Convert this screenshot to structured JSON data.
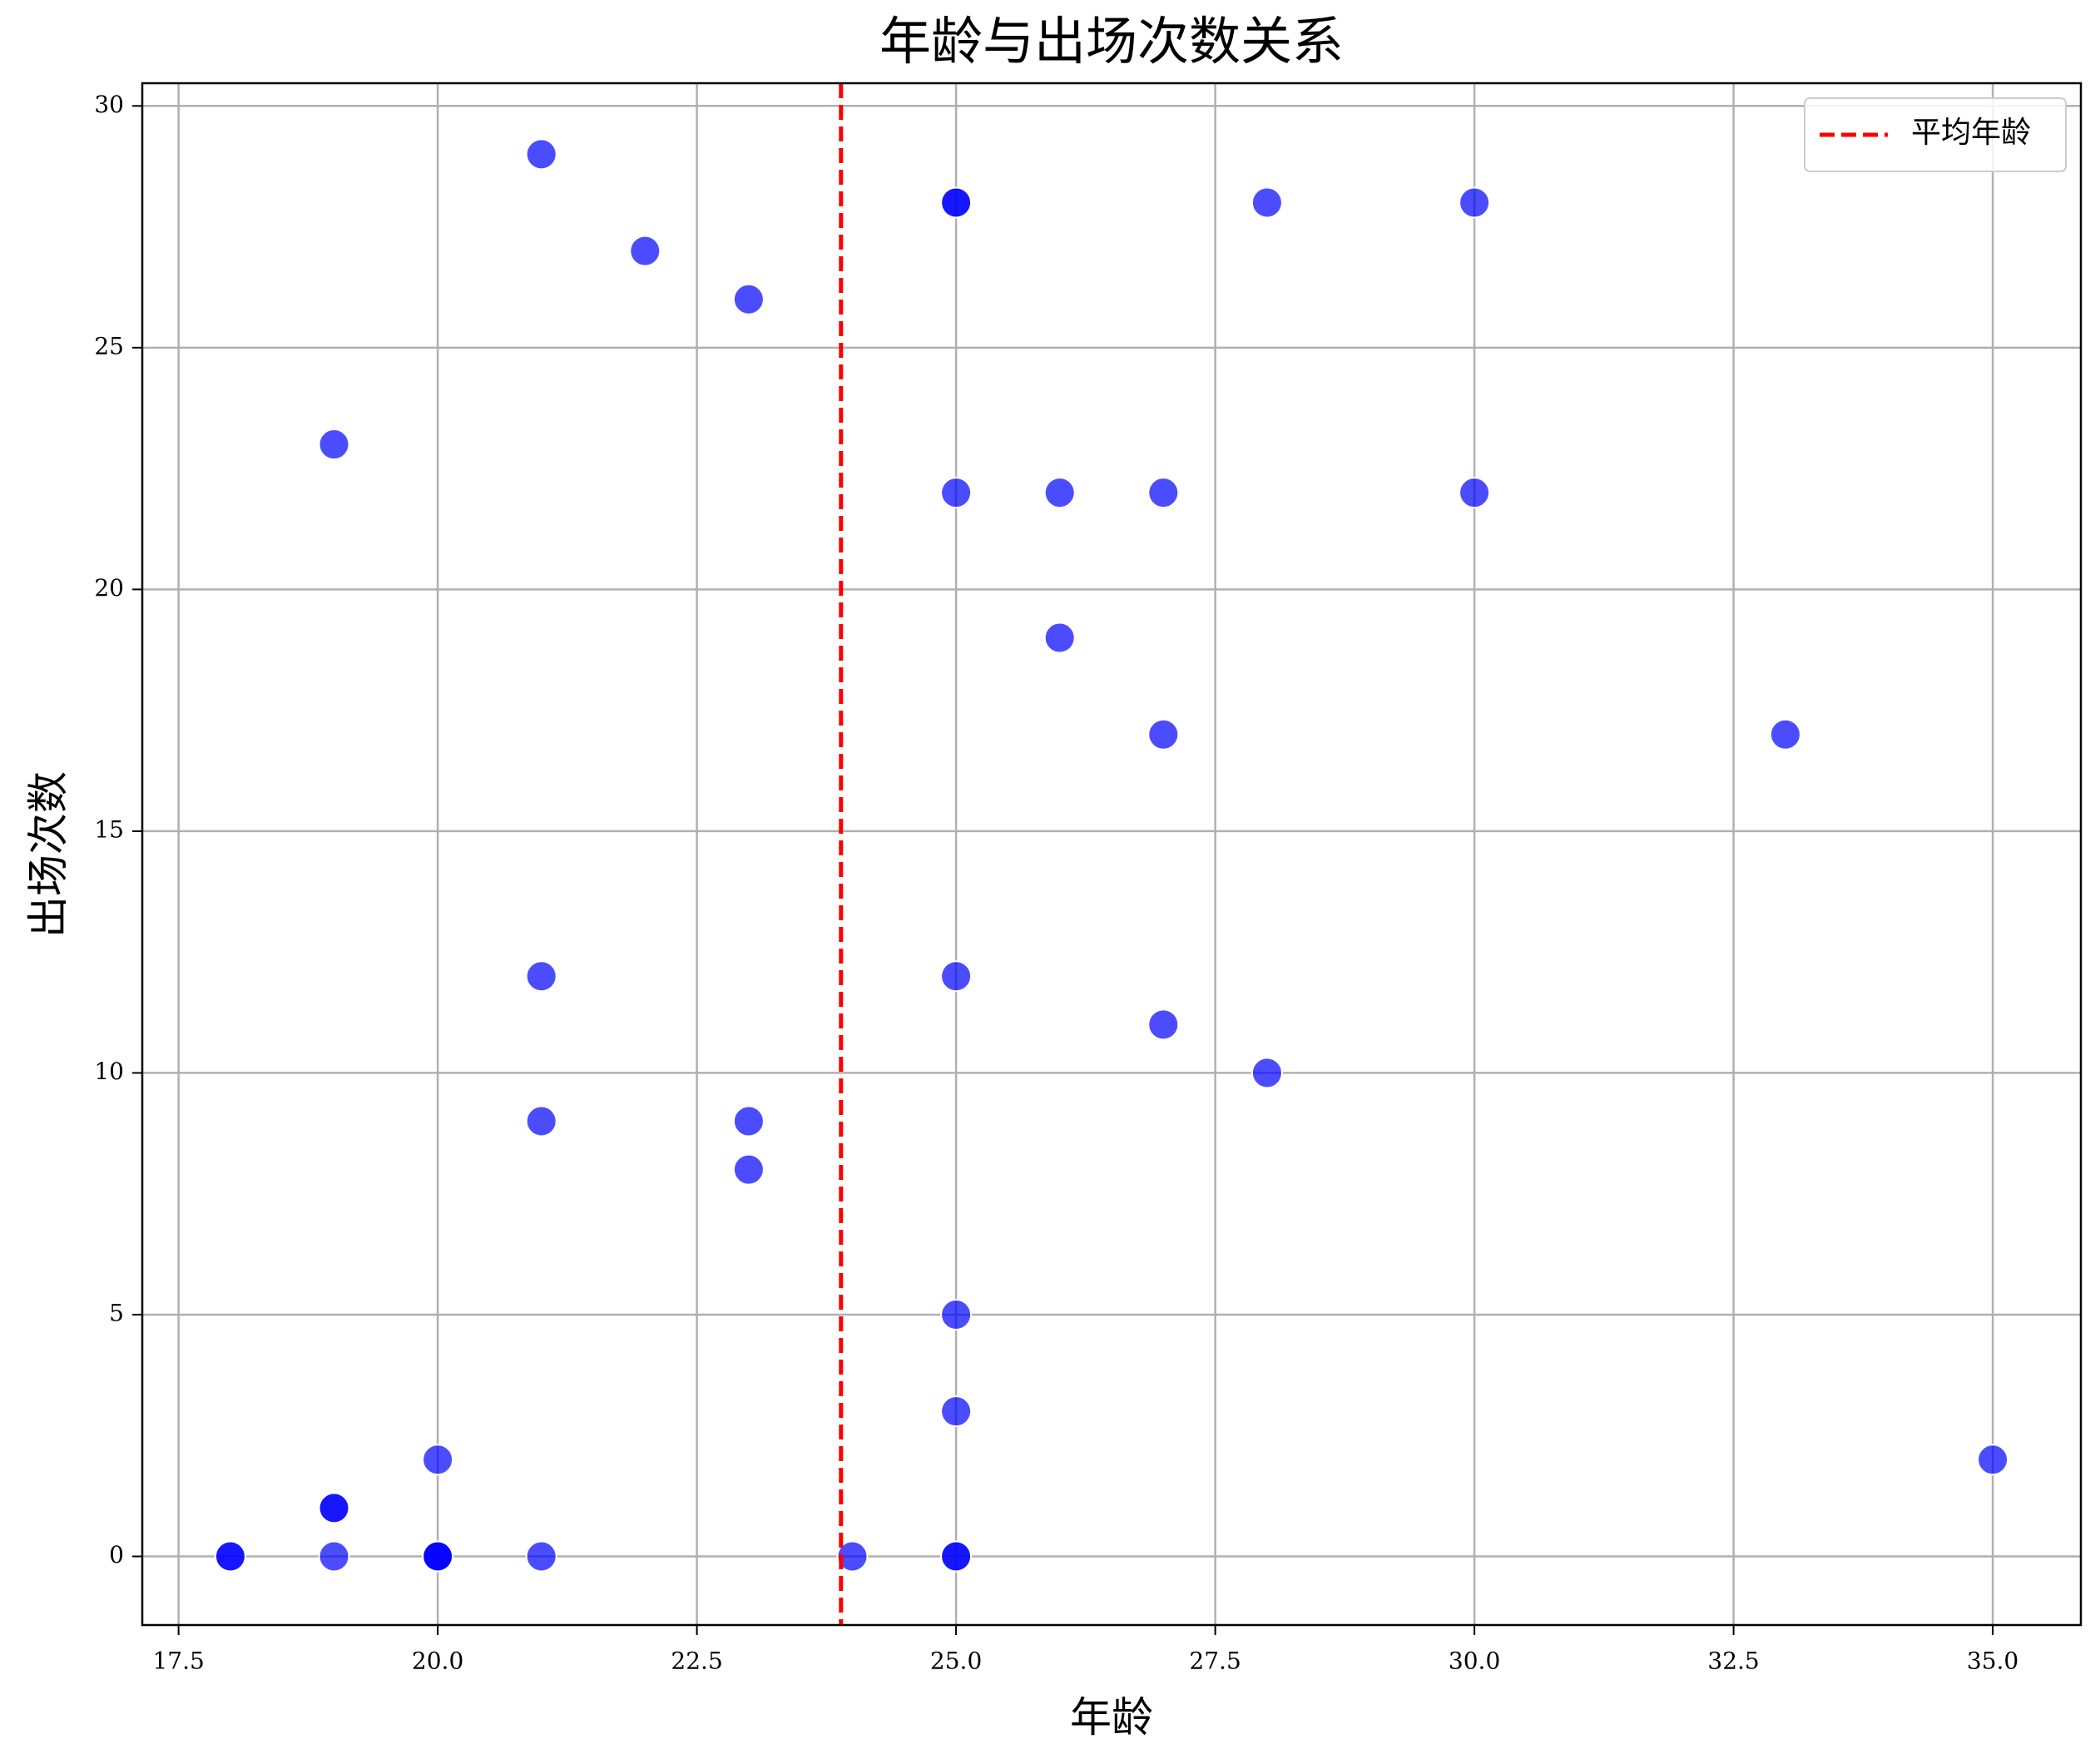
{
  "chart_data": {
    "type": "scatter",
    "title": "年龄与出场次数关系",
    "x_label": "年龄",
    "y_label": "出场次数",
    "x": [
      21,
      25,
      25,
      28,
      30,
      22,
      23,
      19,
      25,
      26,
      27,
      30,
      26,
      27,
      33,
      21,
      25,
      27,
      28,
      21,
      23,
      23,
      25,
      25,
      20,
      35,
      19,
      19,
      18,
      18,
      19,
      20,
      20,
      20,
      21,
      24,
      25,
      25
    ],
    "y": [
      29,
      28,
      28,
      28,
      28,
      27,
      26,
      23,
      22,
      22,
      22,
      22,
      19,
      17,
      17,
      12,
      12,
      11,
      10,
      9,
      9,
      8,
      5,
      3,
      2,
      2,
      1,
      1,
      0,
      0,
      0,
      0,
      0,
      0,
      0,
      0,
      0,
      0
    ],
    "color": "#0000ff",
    "mean_line": {
      "value": 23.89,
      "label": "平均年龄",
      "color": "#ff0000"
    },
    "xlim": [
      17.15,
      35.85
    ],
    "xticks": [
      17.5,
      {
        "value": 20,
        "label": "20.0"
      },
      22.5,
      {
        "value": 25,
        "label": "25.0"
      },
      27.5,
      {
        "value": 30,
        "label": "30.0"
      },
      32.5,
      {
        "value": 35,
        "label": "35.0"
      }
    ],
    "ylim": [
      -1.42,
      30.47
    ],
    "yticks": [
      0,
      5,
      10,
      15,
      20,
      25,
      30
    ],
    "grid": true,
    "legend": "upper right"
  }
}
